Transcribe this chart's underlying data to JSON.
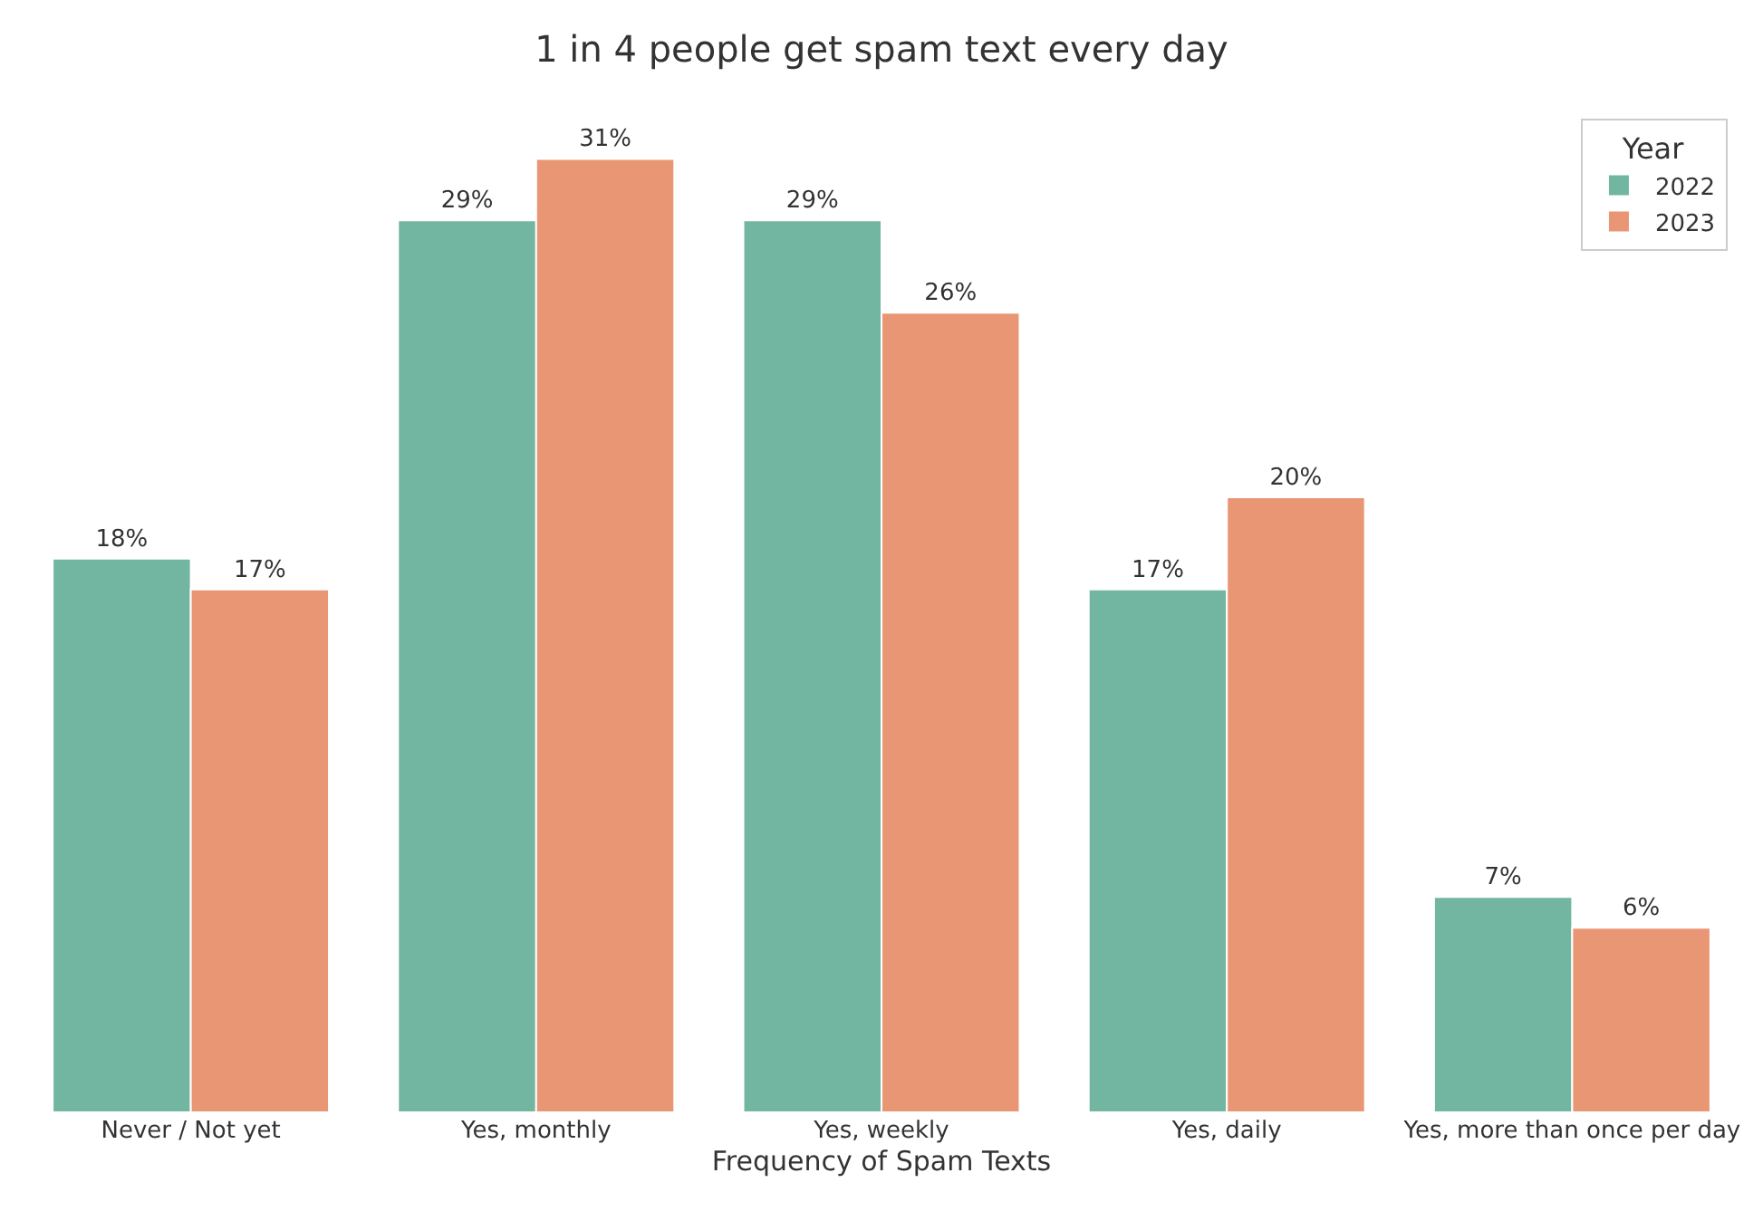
{
  "chart_data": {
    "type": "bar",
    "title": "1 in 4 people get spam text every day",
    "xlabel": "Frequency of Spam Texts",
    "legend_title": "Year",
    "categories": [
      "Never / Not yet",
      "Yes, monthly",
      "Yes, weekly",
      "Yes, daily",
      "Yes, more than once per day"
    ],
    "series": [
      {
        "name": "2022",
        "color": "#72b6a1",
        "values": [
          18,
          29,
          29,
          17,
          7
        ],
        "value_labels": [
          "18%",
          "29%",
          "29%",
          "17%",
          "7%"
        ]
      },
      {
        "name": "2023",
        "color": "#e99675",
        "values": [
          17,
          31,
          26,
          20,
          6
        ],
        "value_labels": [
          "17%",
          "31%",
          "26%",
          "20%",
          "6%"
        ]
      }
    ],
    "legend": "top right"
  }
}
